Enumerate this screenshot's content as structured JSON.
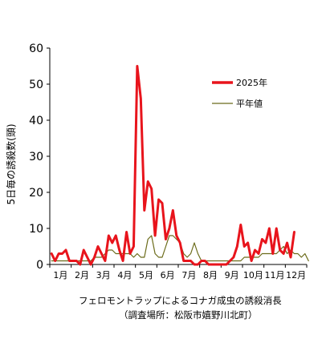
{
  "chart_data": {
    "type": "line",
    "ylabel": "5日毎の誘殺数(頭)",
    "ylim": [
      0,
      60
    ],
    "yticks": [
      0,
      10,
      20,
      30,
      40,
      50,
      60
    ],
    "xlim": [
      0,
      72
    ],
    "months": [
      "1月",
      "2月",
      "3月",
      "4月",
      "5月",
      "6月",
      "7月",
      "8月",
      "9月",
      "10月",
      "11月",
      "12月"
    ],
    "grid": false,
    "legend_position": "right",
    "series": [
      {
        "name": "2025年",
        "color": "#e8141c",
        "values": [
          3,
          1,
          3,
          3,
          4,
          1,
          1,
          1,
          0,
          4,
          2,
          0,
          2,
          5,
          3,
          1,
          8,
          6,
          8,
          4,
          1,
          9,
          3,
          5,
          55,
          46,
          15,
          23,
          21,
          8,
          18,
          17,
          7,
          10,
          15,
          8,
          6,
          1,
          1,
          1,
          0,
          0,
          1,
          1,
          0,
          0,
          0,
          0,
          0,
          0,
          1,
          2,
          5,
          11,
          5,
          6,
          1,
          4,
          3,
          7,
          6,
          10,
          3,
          10,
          4,
          3,
          6,
          2,
          9
        ]
      },
      {
        "name": "平年値",
        "color": "#6b6b1a",
        "values": [
          1,
          1,
          1,
          1,
          1,
          1,
          1,
          1,
          1,
          1,
          1,
          1,
          2,
          2,
          2,
          3,
          4,
          4,
          3,
          3,
          3,
          3,
          3,
          2,
          3,
          2,
          2,
          7,
          8,
          3,
          2,
          2,
          5,
          8,
          8,
          7,
          6,
          3,
          2,
          3,
          6,
          3,
          1,
          1,
          1,
          1,
          1,
          1,
          1,
          1,
          1,
          1,
          1,
          1,
          2,
          2,
          2,
          2,
          2,
          3,
          3,
          3,
          3,
          3,
          4,
          5,
          3,
          4,
          3,
          3,
          2,
          3,
          1
        ]
      }
    ]
  },
  "caption": {
    "line1": "フェロモントラップによるコナガ成虫の誘殺消長",
    "line2": "（調査場所：松阪市嬉野川北町）"
  }
}
